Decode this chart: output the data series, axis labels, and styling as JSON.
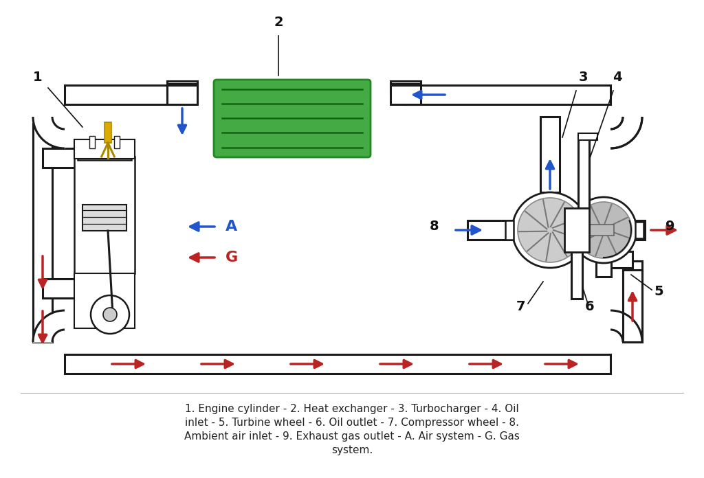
{
  "caption_line1": "1. Engine cylinder - 2. Heat exchanger - 3. Turbocharger - 4. Oil",
  "caption_line2": "inlet - 5. Turbine wheel - 6. Oil outlet - 7. Compressor wheel - 8.",
  "caption_line3": "Ambient air inlet - 9. Exhaust gas outlet - A. Air system - G. Gas",
  "caption_line4": "system.",
  "bg_color": "#ffffff",
  "outline_color": "#1a1a1a",
  "blue_arrow_color": "#2255cc",
  "red_arrow_color": "#bb2222",
  "hx_fill": "#44aa44",
  "hx_line": "#116611",
  "hx_edge": "#228822",
  "label_color": "#111111",
  "gray_light": "#cccccc",
  "gray_mid": "#aaaaaa",
  "gray_dark": "#888888",
  "yellow": "#ddaa00",
  "yellow_dark": "#aa8800"
}
